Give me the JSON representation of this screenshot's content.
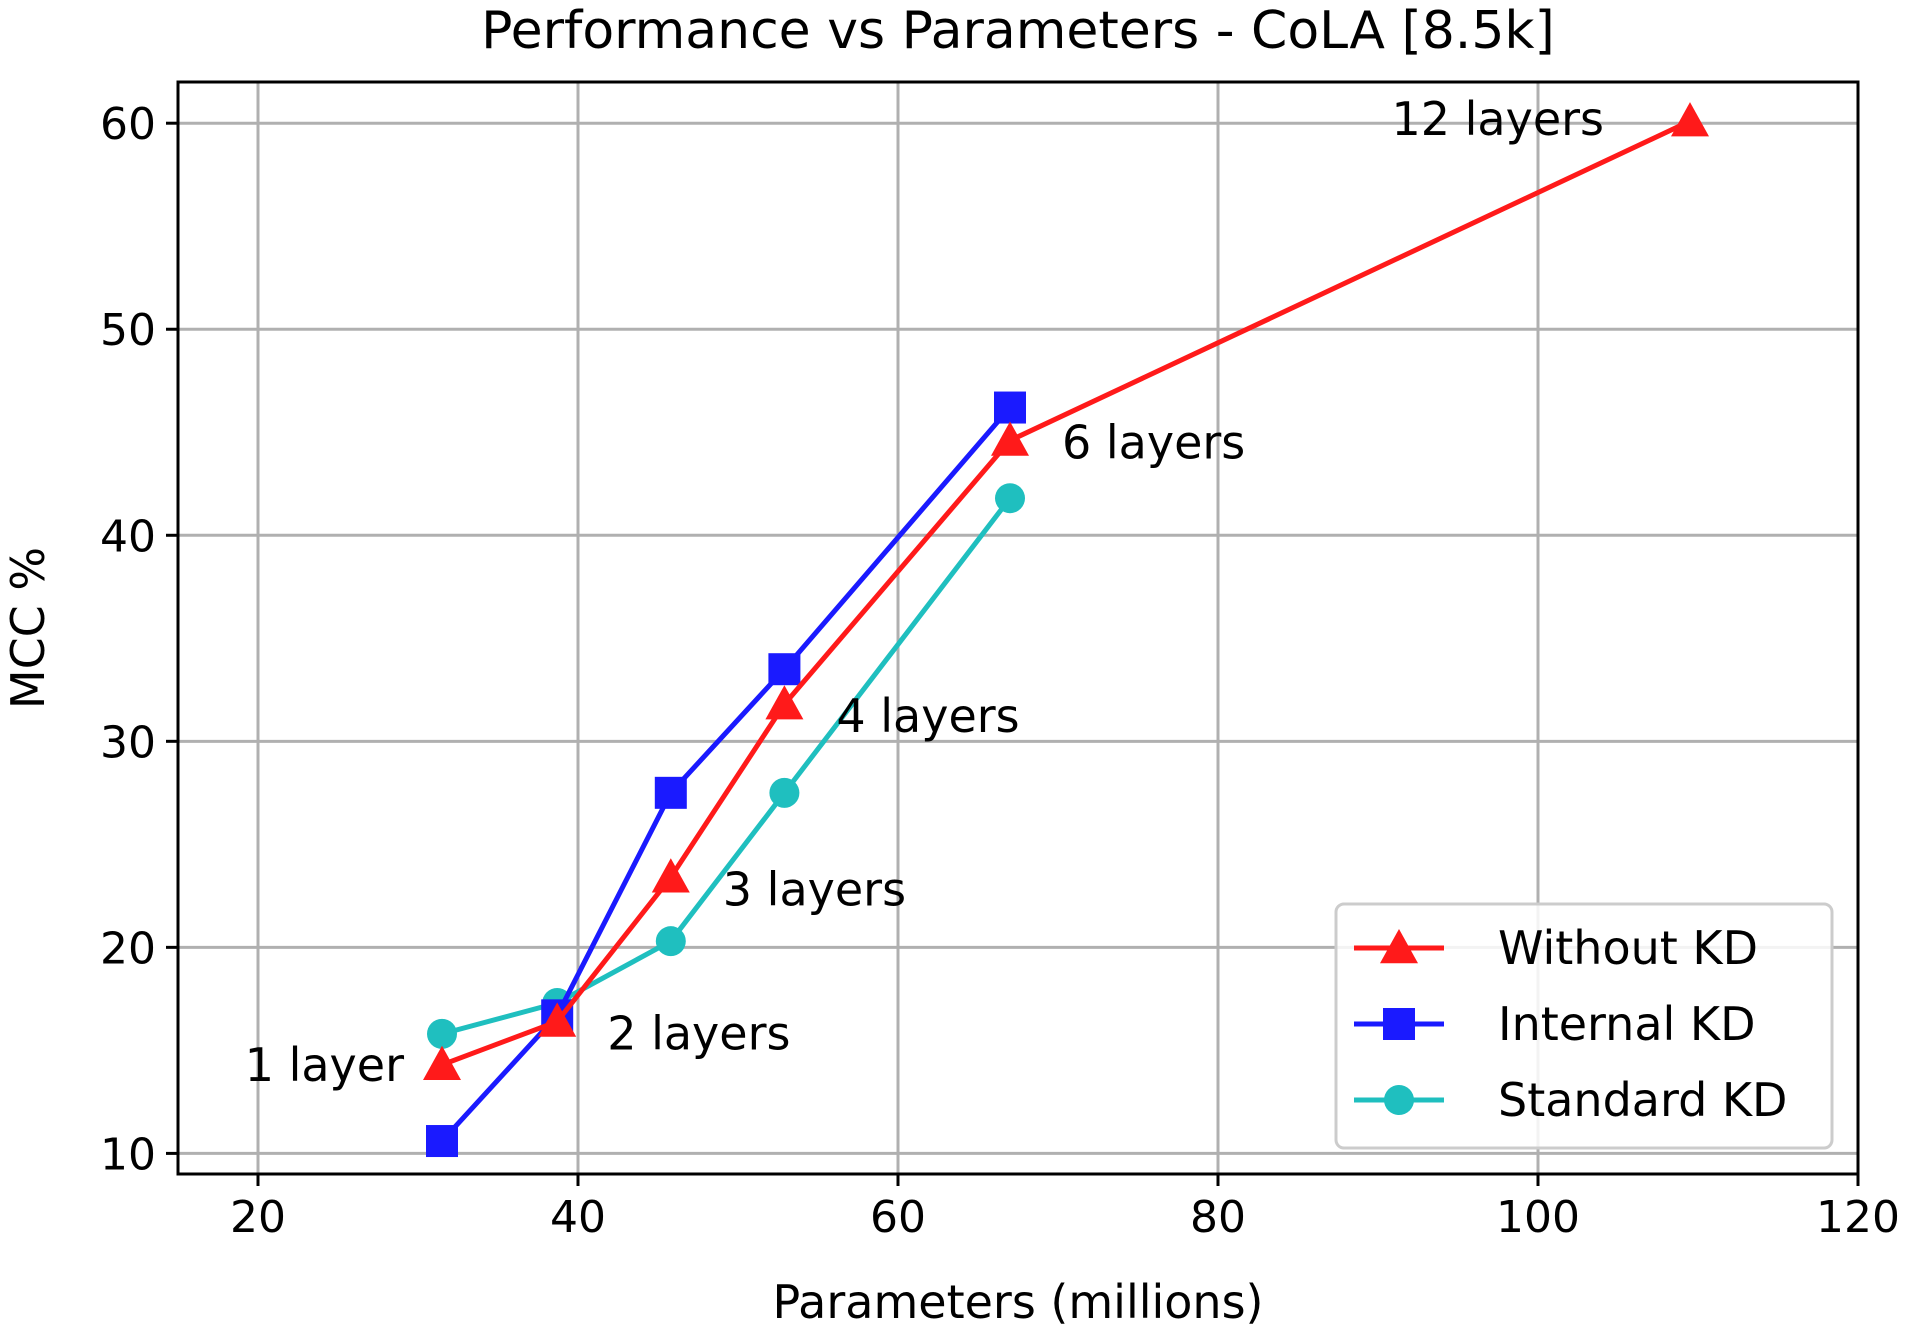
{
  "chart_data": {
    "type": "line",
    "title": "Performance vs Parameters - CoLA [8.5k]",
    "xlabel": "Parameters (millions)",
    "ylabel": "MCC %",
    "xlim": [
      15,
      120
    ],
    "ylim": [
      9,
      62
    ],
    "xticks": [
      20,
      40,
      60,
      80,
      100,
      120
    ],
    "yticks": [
      10,
      20,
      30,
      40,
      50,
      60
    ],
    "grid": true,
    "legend_position": "lower-right",
    "series": [
      {
        "name": "Without KD",
        "color": "#ff1a1a",
        "marker": "triangle",
        "x": [
          31.5,
          38.7,
          45.8,
          52.9,
          67.0,
          109.5
        ],
        "y": [
          14.3,
          16.4,
          23.4,
          31.8,
          44.6,
          60.1
        ]
      },
      {
        "name": "Internal KD",
        "color": "#1a1aff",
        "marker": "square",
        "x": [
          31.5,
          38.7,
          45.8,
          52.9,
          67.0
        ],
        "y": [
          10.6,
          16.7,
          27.5,
          33.5,
          46.2
        ]
      },
      {
        "name": "Standard KD",
        "color": "#1fbfbf",
        "marker": "circle",
        "x": [
          31.5,
          38.7,
          45.8,
          52.9,
          67.0
        ],
        "y": [
          15.8,
          17.3,
          20.3,
          27.5,
          41.8
        ]
      }
    ],
    "annotations": [
      {
        "text": "1 layer",
        "x": 31.5,
        "y": 14.3
      },
      {
        "text": "2 layers",
        "x": 38.7,
        "y": 16.4
      },
      {
        "text": "3 layers",
        "x": 45.8,
        "y": 23.4
      },
      {
        "text": "4 layers",
        "x": 52.9,
        "y": 31.8
      },
      {
        "text": "6 layers",
        "x": 67.0,
        "y": 44.6
      },
      {
        "text": "12 layers",
        "x": 109.5,
        "y": 60.1
      }
    ]
  }
}
